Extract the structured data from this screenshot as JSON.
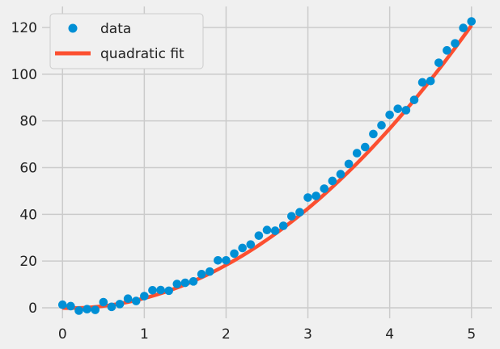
{
  "chart_data": {
    "type": "scatter",
    "style": "fivethirtyeight",
    "grid": true,
    "legend_position": "top-left",
    "xlim": [
      -0.25,
      5.25
    ],
    "ylim": [
      -4.5,
      129
    ],
    "xticks": [
      0,
      1,
      2,
      3,
      4,
      5
    ],
    "yticks": [
      0,
      20,
      40,
      60,
      80,
      100,
      120
    ],
    "xtick_labels": [
      "0",
      "1",
      "2",
      "3",
      "4",
      "5"
    ],
    "ytick_labels": [
      "0",
      "20",
      "40",
      "60",
      "80",
      "100",
      "120"
    ],
    "series": [
      {
        "name": "data",
        "kind": "scatter",
        "color": "#008fd5",
        "x": [
          0.0,
          0.1,
          0.2,
          0.3,
          0.4,
          0.5,
          0.6,
          0.7,
          0.8,
          0.9,
          1.0,
          1.1,
          1.2,
          1.3,
          1.4,
          1.5,
          1.6,
          1.7,
          1.8,
          1.9,
          2.0,
          2.1,
          2.2,
          2.3,
          2.4,
          2.5,
          2.6,
          2.7,
          2.8,
          2.9,
          3.0,
          3.1,
          3.2,
          3.3,
          3.4,
          3.5,
          3.6,
          3.7,
          3.8,
          3.9,
          4.0,
          4.1,
          4.2,
          4.3,
          4.4,
          4.5,
          4.6,
          4.7,
          4.8,
          4.9,
          5.0
        ],
        "y": [
          1.3,
          0.7,
          -1.2,
          -0.6,
          -0.9,
          2.4,
          0.4,
          1.6,
          3.9,
          2.9,
          5.0,
          7.5,
          7.6,
          7.3,
          10.2,
          10.7,
          11.3,
          14.4,
          15.5,
          20.3,
          20.3,
          23.2,
          25.6,
          27.1,
          30.9,
          33.3,
          33.0,
          35.1,
          39.2,
          40.9,
          47.2,
          47.9,
          51.0,
          54.3,
          57.2,
          61.6,
          66.2,
          68.8,
          74.4,
          78.1,
          82.6,
          85.2,
          84.6,
          89.0,
          96.5,
          97.1,
          104.9,
          110.2,
          113.2,
          119.8,
          122.6
        ]
      },
      {
        "name": "quadratic fit",
        "kind": "line",
        "color": "#fc4f30",
        "coefficients": {
          "a": 5.0,
          "b": -0.8,
          "c": -0.1
        },
        "x_range": [
          0,
          5
        ]
      }
    ]
  }
}
